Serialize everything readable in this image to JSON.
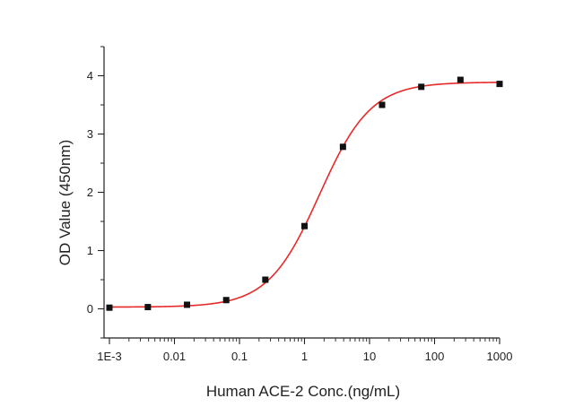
{
  "chart_data": {
    "type": "scatter",
    "xlabel": "Human ACE-2 Conc.(ng/mL)",
    "ylabel": "OD Value (450nm)",
    "x_scale": "log",
    "xlim": [
      0.001,
      1000
    ],
    "ylim": [
      -0.5,
      4.5
    ],
    "x_ticks": [
      0.001,
      0.01,
      0.1,
      1,
      10,
      100,
      1000
    ],
    "x_tick_labels": [
      "1E-3",
      "0.01",
      "0.1",
      "1",
      "10",
      "100",
      "1000"
    ],
    "y_ticks": [
      0,
      1,
      2,
      3,
      4
    ],
    "y_tick_labels": [
      "0",
      "1",
      "2",
      "3",
      "4"
    ],
    "grid": false,
    "series": [
      {
        "marker": "square",
        "color": "#111111",
        "x": [
          0.001,
          0.0039,
          0.0156,
          0.0625,
          0.25,
          1,
          3.9,
          15.6,
          62.5,
          250,
          1000
        ],
        "y": [
          0.02,
          0.03,
          0.07,
          0.15,
          0.5,
          1.42,
          2.78,
          3.5,
          3.81,
          3.93,
          3.86
        ]
      }
    ],
    "fit_curve": {
      "type": "four-parameter-logistic",
      "color": "#e8292a",
      "bottom": 0.03,
      "top": 3.89,
      "ec50": 1.7,
      "hill": 1.1
    }
  }
}
